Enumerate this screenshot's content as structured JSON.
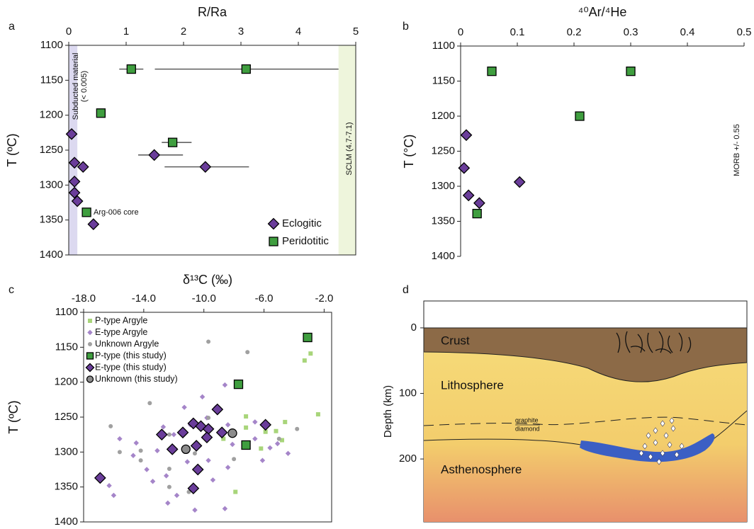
{
  "chart_data": [
    {
      "type": "scatter",
      "panel": "a",
      "xlabel": "R/Ra",
      "ylabel": "T (ºC)",
      "xlim": [
        0,
        5
      ],
      "xticks": [
        0,
        1,
        2,
        3,
        4,
        5
      ],
      "ylim": [
        1100,
        1400
      ],
      "yticks": [
        1100,
        1150,
        1200,
        1250,
        1300,
        1350,
        1400
      ],
      "y_inverted": true,
      "frame": true,
      "legend": "lower right",
      "bands": [
        {
          "label": "Subducted material",
          "note": "(< 0.005)",
          "x0": 0,
          "x1": 0.15,
          "color": "#dcd9f0"
        },
        {
          "label": "SCLM (4.7-7.1)",
          "x0": 4.7,
          "x1": 5,
          "color": "#eef5dc"
        }
      ],
      "series": [
        {
          "name": "Eclogitic",
          "marker": "diamond",
          "color": "#6a3d9a",
          "edgecolor": "#000000",
          "x": [
            0.05,
            0.1,
            0.25,
            0.1,
            0.1,
            0.15,
            0.43,
            1.49,
            2.38
          ],
          "values": [
            1227,
            1268,
            1274,
            1295,
            1311,
            1323,
            1356,
            1257,
            1274
          ],
          "x_low": [
            null,
            null,
            null,
            null,
            null,
            null,
            null,
            1.21,
            1.67
          ],
          "x_high": [
            null,
            null,
            null,
            null,
            null,
            null,
            null,
            1.99,
            3.14
          ]
        },
        {
          "name": "Peridotitic",
          "marker": "square",
          "color": "#3f9e3f",
          "edgecolor": "#000000",
          "x": [
            1.09,
            3.09,
            0.56,
            1.81,
            0.31
          ],
          "values": [
            1134,
            1134,
            1197,
            1239,
            1339
          ],
          "x_low": [
            0.88,
            1.5,
            null,
            1.62,
            null
          ],
          "x_high": [
            1.3,
            4.7,
            null,
            2.14,
            null
          ]
        }
      ],
      "annotations": [
        "Arg-006 core"
      ]
    },
    {
      "type": "scatter",
      "panel": "b",
      "xlabel": "⁴⁰Ar/⁴He",
      "ylabel": "T (°C)",
      "xlim": [
        0,
        0.5
      ],
      "xticks": [
        0,
        0.1,
        0.2,
        0.3,
        0.4,
        0.5
      ],
      "ylim": [
        1100,
        1400
      ],
      "yticks": [
        1100,
        1150,
        1200,
        1250,
        1300,
        1350,
        1400
      ],
      "y_inverted": true,
      "frame": false,
      "series": [
        {
          "marker": "diamond",
          "color": "#6a3d9a",
          "edgecolor": "#000000",
          "x": [
            0.01,
            0.006,
            0.014,
            0.033,
            0.104
          ],
          "values": [
            1227,
            1274,
            1313,
            1324,
            1294
          ]
        },
        {
          "marker": "square",
          "color": "#3f9e3f",
          "edgecolor": "#000000",
          "x": [
            0.055,
            0.3,
            0.21,
            0.029
          ],
          "values": [
            1136,
            1136,
            1200,
            1339
          ]
        }
      ],
      "annotations": [
        "MORB +/- 0.55"
      ]
    },
    {
      "type": "scatter",
      "panel": "c",
      "xlabel": "δ¹³C (‰)",
      "ylabel": "T (ºC)",
      "xlim": [
        -18,
        -1.5
      ],
      "xticks": [
        {
          "value": -18,
          "label": "-18.0"
        },
        {
          "value": -14,
          "label": "-14.0"
        },
        {
          "value": -10,
          "label": "-10.0"
        },
        {
          "value": -6,
          "label": "-6.0"
        },
        {
          "value": -2,
          "label": "-2.0"
        }
      ],
      "ylim": [
        1100,
        1400
      ],
      "yticks": [
        1100,
        1150,
        1200,
        1250,
        1300,
        1350,
        1400
      ],
      "y_inverted": true,
      "frame": true,
      "legend": "upper left",
      "series": [
        {
          "name": "P-type Argyle",
          "marker": "square",
          "color": "#a8d57a",
          "x": [
            -2.9,
            -3.3,
            -2.4,
            -7.2,
            -7.2,
            -4.6,
            -5.9,
            -5.2,
            -8.7,
            -4.8,
            -7.9,
            -6.2
          ],
          "values": [
            1159,
            1169,
            1246,
            1249,
            1265,
            1257,
            1271,
            1270,
            1281,
            1283,
            1357,
            1295
          ]
        },
        {
          "name": "E-type Argyle",
          "marker": "diamond",
          "color": "#a585c9",
          "x": [
            -16.3,
            -16.0,
            -15.6,
            -14.7,
            -14.5,
            -13.8,
            -13.4,
            -13.1,
            -12.7,
            -12.5,
            -12.0,
            -11.8,
            -11.3,
            -11.1,
            -10.9,
            -10.1,
            -9.8,
            -9.7,
            -9.4,
            -9.2,
            -8.6,
            -8.4,
            -8.4,
            -8.1,
            -6.6,
            -6.6,
            -6.1,
            -5.6,
            -5.1,
            -4.4,
            -8.6,
            -12.4,
            -10.6
          ],
          "values": [
            1348,
            1362,
            1281,
            1305,
            1287,
            1325,
            1342,
            1298,
            1264,
            1334,
            1275,
            1362,
            1236,
            1314,
            1261,
            1221,
            1251,
            1312,
            1340,
            1236,
            1204,
            1261,
            1322,
            1289,
            1257,
            1281,
            1312,
            1294,
            1288,
            1302,
            1381,
            1373,
            1383
          ]
        },
        {
          "name": "Unknown Argyle",
          "marker": "circle",
          "color": "#a0a0a0",
          "x": [
            -9.7,
            -7.1,
            -13.6,
            -16.2,
            -15.6,
            -14.2,
            -14.2,
            -12.3,
            -10.6,
            -12.3,
            -11.0,
            -8.0,
            -5.0,
            -3.8,
            -12.3,
            -9.7
          ],
          "values": [
            1142,
            1157,
            1230,
            1263,
            1300,
            1298,
            1312,
            1275,
            1302,
            1324,
            1357,
            1310,
            1281,
            1267,
            1350,
            1251
          ]
        },
        {
          "name": "P-type (this study)",
          "marker": "square",
          "color": "#3f9e3f",
          "edgecolor": "#000000",
          "x": [
            -3.1,
            -7.7,
            -7.2
          ],
          "values": [
            1136,
            1203,
            1290
          ]
        },
        {
          "name": "E-type (this study)",
          "marker": "diamond",
          "color": "#6a3d9a",
          "edgecolor": "#000000",
          "x": [
            -16.9,
            -12.8,
            -11.4,
            -12.1,
            -10.7,
            -10.2,
            -9.7,
            -8.8,
            -9.1,
            -5.9,
            -10.5,
            -9.8,
            -10.4,
            -10.7
          ],
          "values": [
            1337,
            1275,
            1272,
            1296,
            1259,
            1263,
            1267,
            1272,
            1239,
            1261,
            1291,
            1279,
            1325,
            1352
          ]
        },
        {
          "name": "Unknown (this study)",
          "marker": "circle",
          "color": "#8c8c8c",
          "edgecolor": "#000000",
          "x": [
            -8.1,
            -11.2
          ],
          "values": [
            1273,
            1296
          ]
        }
      ]
    },
    {
      "type": "section",
      "panel": "d",
      "ylabel": "Depth (km)",
      "ylim": [
        -41,
        296
      ],
      "yticks": [
        0,
        100,
        200
      ],
      "labels": [
        "Crust",
        "Lithosphere",
        "Asthenosphere",
        "graphite",
        "diamond"
      ]
    }
  ]
}
